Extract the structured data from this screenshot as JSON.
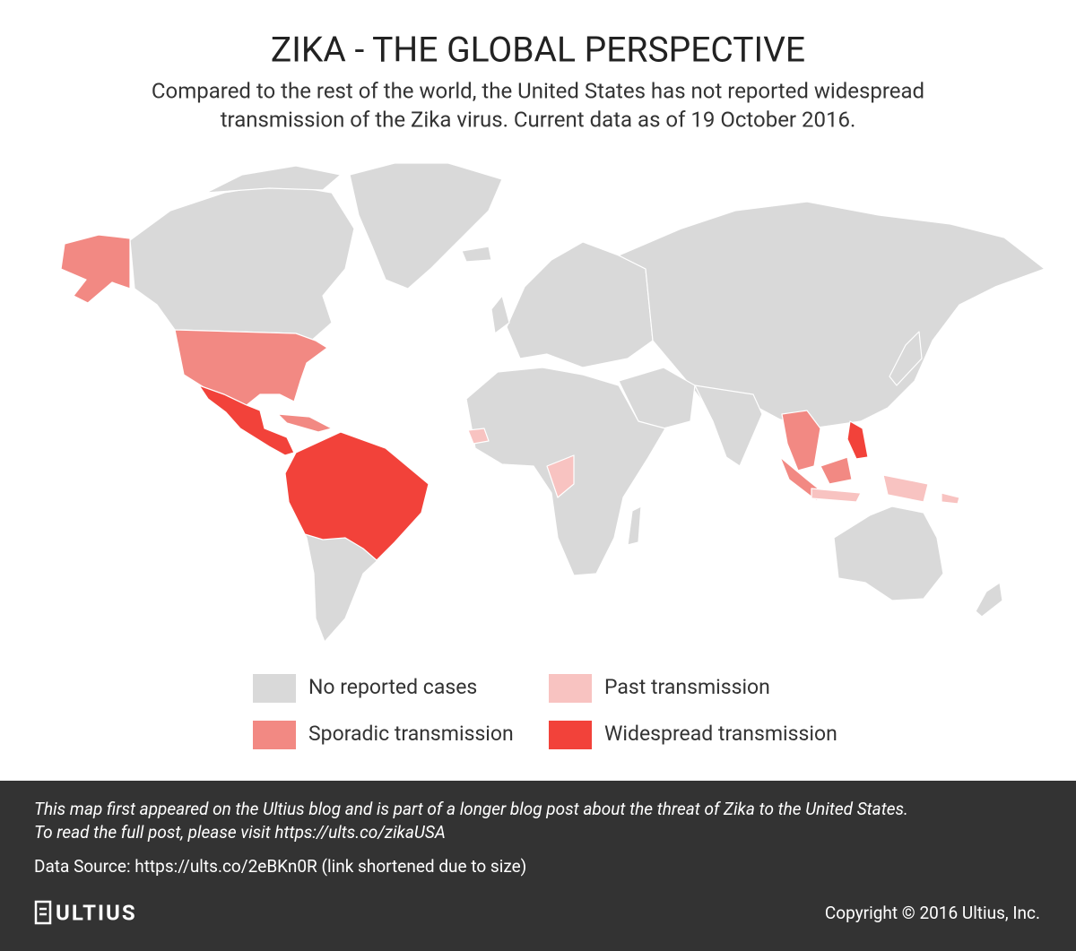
{
  "header": {
    "title": "ZIKA - THE GLOBAL PERSPECTIVE",
    "subtitle_lines": [
      "Compared to the rest of the world, the United States has not reported widespread",
      "transmission of the Zika virus. Current data as of 19 October 2016."
    ]
  },
  "legend": [
    {
      "label": "No reported cases",
      "color": "#d9d9d9"
    },
    {
      "label": "Past transmission",
      "color": "#f8c3c1"
    },
    {
      "label": "Sporadic transmission",
      "color": "#f28983"
    },
    {
      "label": "Widespread transmission",
      "color": "#f2423a"
    }
  ],
  "footer": {
    "note_lines": [
      "This map first appeared on the Ultius blog and is part of a longer blog post about the threat of Zika to the United States.",
      "To read the full post, please visit https://ults.co/zikaUSA"
    ],
    "source": "Data Source: https://ults.co/2eBKn0R (link shortened due to size)",
    "logo": "ULTIUS",
    "copyright": "Copyright © 2016 Ultius, Inc."
  }
}
